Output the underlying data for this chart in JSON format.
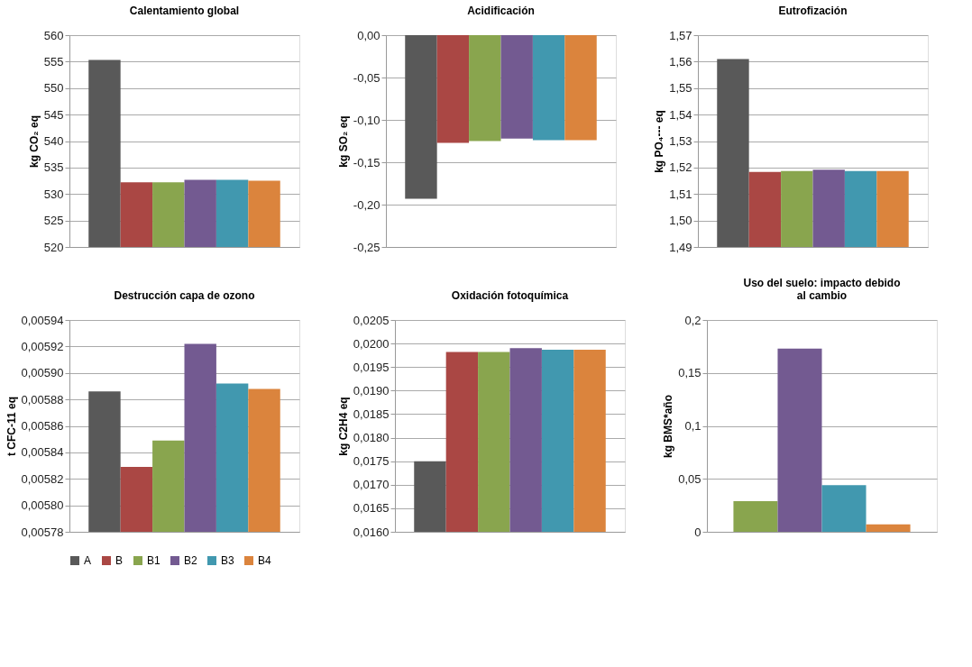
{
  "chart_data": [
    {
      "type": "bar",
      "title": "Calentamiento global",
      "ylabel": "kg CO₂ eq",
      "categories": [
        null
      ],
      "tick_labels": "y",
      "grid": "y",
      "legend": "bottom",
      "ylim": [
        520,
        560
      ],
      "yticks": [
        520,
        525,
        530,
        535,
        540,
        545,
        550,
        555,
        560
      ],
      "series": [
        {
          "name": "A",
          "color": "#595959",
          "values": [
            555.3
          ]
        },
        {
          "name": "B",
          "color": "#aa4744",
          "values": [
            532.2
          ]
        },
        {
          "name": "B1",
          "color": "#89a54e",
          "values": [
            532.2
          ]
        },
        {
          "name": "B2",
          "color": "#735a91",
          "values": [
            532.7
          ]
        },
        {
          "name": "B3",
          "color": "#4198af",
          "values": [
            532.7
          ]
        },
        {
          "name": "B4",
          "color": "#db843d",
          "values": [
            532.5
          ]
        }
      ]
    },
    {
      "type": "bar",
      "title": "Acidificación",
      "ylabel": "kg SO₂ eq",
      "categories": [
        null
      ],
      "tick_labels": "y",
      "grid": "y",
      "ylim": [
        -0.25,
        0
      ],
      "yticks": [
        {
          "value": -0.25,
          "label": "-0,25"
        },
        {
          "value": -0.2,
          "label": "-0,20"
        },
        {
          "value": -0.15,
          "label": "-0,15"
        },
        {
          "value": -0.1,
          "label": "-0,10"
        },
        {
          "value": -0.05,
          "label": "-0,05"
        },
        {
          "value": 0,
          "label": "0,00"
        }
      ],
      "series": [
        {
          "name": "A",
          "color": "#595959",
          "values": [
            -0.193
          ]
        },
        {
          "name": "B",
          "color": "#aa4744",
          "values": [
            -0.127
          ]
        },
        {
          "name": "B1",
          "color": "#8aa64e",
          "values": [
            -0.125
          ]
        },
        {
          "name": "B2",
          "color": "#735a91",
          "values": [
            -0.122
          ]
        },
        {
          "name": "B3",
          "color": "#4198af",
          "values": [
            -0.124
          ]
        },
        {
          "name": "B4",
          "color": "#db843d",
          "values": [
            -0.124
          ]
        }
      ]
    },
    {
      "type": "bar",
      "title": "Eutrofización",
      "ylabel": "kg PO₄--- eq",
      "categories": [
        null
      ],
      "tick_labels": "y",
      "grid": "y",
      "ylim": [
        1.49,
        1.57
      ],
      "yticks": [
        {
          "value": 1.49,
          "label": "1,49"
        },
        {
          "value": 1.5,
          "label": "1,50"
        },
        {
          "value": 1.51,
          "label": "1,51"
        },
        {
          "value": 1.52,
          "label": "1,52"
        },
        {
          "value": 1.53,
          "label": "1,53"
        },
        {
          "value": 1.54,
          "label": "1,54"
        },
        {
          "value": 1.55,
          "label": "1,55"
        },
        {
          "value": 1.56,
          "label": "1,56"
        },
        {
          "value": 1.57,
          "label": "1,57"
        }
      ],
      "series": [
        {
          "name": "A",
          "color": "#595959",
          "values": [
            1.561
          ]
        },
        {
          "name": "B",
          "color": "#aa4744",
          "values": [
            1.5183
          ]
        },
        {
          "name": "B1",
          "color": "#89a54e",
          "values": [
            1.5187
          ]
        },
        {
          "name": "B2",
          "color": "#735a91",
          "values": [
            1.5192
          ]
        },
        {
          "name": "B3",
          "color": "#4198af",
          "values": [
            1.5187
          ]
        },
        {
          "name": "B4",
          "color": "#db843d",
          "values": [
            1.5187
          ]
        }
      ]
    },
    {
      "type": "bar",
      "title": "Destrucción capa de ozono",
      "ylabel": "t CFC-11 eq",
      "categories": [
        null
      ],
      "tick_labels": "y",
      "grid": "y",
      "ylim": [
        0.00578,
        0.00594
      ],
      "yticks": [
        {
          "value": 0.00578,
          "label": "0,00578"
        },
        {
          "value": 0.0058,
          "label": "0,00580"
        },
        {
          "value": 0.00582,
          "label": "0,00582"
        },
        {
          "value": 0.00584,
          "label": "0,00584"
        },
        {
          "value": 0.00586,
          "label": "0,00586"
        },
        {
          "value": 0.00588,
          "label": "0,00588"
        },
        {
          "value": 0.0059,
          "label": "0,00590"
        },
        {
          "value": 0.00592,
          "label": "0,00592"
        },
        {
          "value": 0.00594,
          "label": "0,00594"
        }
      ],
      "series": [
        {
          "name": "A",
          "color": "#595959",
          "values": [
            0.005886
          ]
        },
        {
          "name": "B",
          "color": "#aa4744",
          "values": [
            0.005829
          ]
        },
        {
          "name": "B1",
          "color": "#89a54e",
          "values": [
            0.005849
          ]
        },
        {
          "name": "B2",
          "color": "#735a91",
          "values": [
            0.005922
          ]
        },
        {
          "name": "B3",
          "color": "#4198af",
          "values": [
            0.005892
          ]
        },
        {
          "name": "B4",
          "color": "#db843d",
          "values": [
            0.005888
          ]
        }
      ]
    },
    {
      "type": "bar",
      "title": "Oxidación fotoquímica",
      "ylabel": "kg C2H4 eq",
      "categories": [
        null
      ],
      "tick_labels": "y",
      "grid": "y",
      "ylim": [
        0.016,
        0.0205
      ],
      "yticks": [
        {
          "value": 0.016,
          "label": "0,0160"
        },
        {
          "value": 0.0165,
          "label": "0,0165"
        },
        {
          "value": 0.017,
          "label": "0,0170"
        },
        {
          "value": 0.0175,
          "label": "0,0175"
        },
        {
          "value": 0.018,
          "label": "0,0180"
        },
        {
          "value": 0.0185,
          "label": "0,0185"
        },
        {
          "value": 0.019,
          "label": "0,0190"
        },
        {
          "value": 0.0195,
          "label": "0,0195"
        },
        {
          "value": 0.02,
          "label": "0,0200"
        },
        {
          "value": 0.0205,
          "label": "0,0205"
        }
      ],
      "series": [
        {
          "name": "A",
          "color": "#595959",
          "values": [
            0.0175
          ]
        },
        {
          "name": "B",
          "color": "#aa4744",
          "values": [
            0.01982
          ]
        },
        {
          "name": "B1",
          "color": "#89a54e",
          "values": [
            0.01982
          ]
        },
        {
          "name": "B2",
          "color": "#735a91",
          "values": [
            0.0199
          ]
        },
        {
          "name": "B3",
          "color": "#4198af",
          "values": [
            0.01987
          ]
        },
        {
          "name": "B4",
          "color": "#db843d",
          "values": [
            0.01987
          ]
        }
      ]
    },
    {
      "type": "bar",
      "title": "Uso del suelo: impacto debido al cambio",
      "ylabel": "kg BMS*año",
      "categories": [
        null
      ],
      "tick_labels": "y",
      "grid": "y",
      "ylim": [
        0,
        0.2
      ],
      "yticks": [
        0,
        {
          "value": 0.05,
          "label": "0,05"
        },
        {
          "value": 0.1,
          "label": "0,1"
        },
        {
          "value": 0.15,
          "label": "0,15"
        },
        {
          "value": 0.2,
          "label": "0,2"
        }
      ],
      "series": [
        {
          "name": "B1",
          "color": "#89a54e",
          "values": [
            0.029
          ]
        },
        {
          "name": "B2",
          "color": "#735a91",
          "values": [
            0.173
          ]
        },
        {
          "name": "B3",
          "color": "#4198af",
          "values": [
            0.044
          ]
        },
        {
          "name": "B4",
          "color": "#db843d",
          "values": [
            0.007
          ]
        }
      ]
    }
  ]
}
